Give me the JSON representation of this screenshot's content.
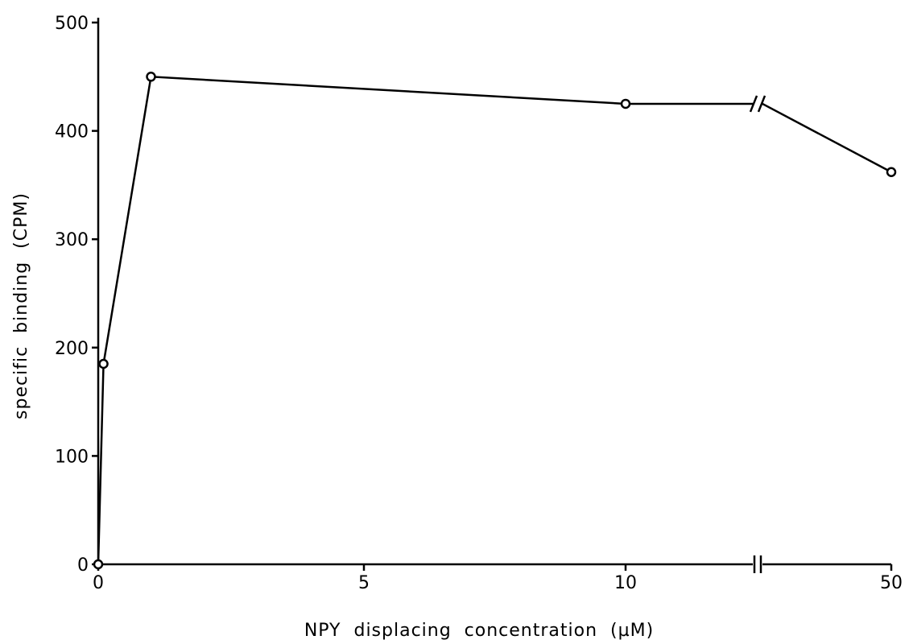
{
  "chart_data": {
    "type": "line",
    "title": "",
    "xlabel": "NPY  displacing  concentration  (µM)",
    "ylabel": "specific  binding  (CPM)",
    "x_ticks": [
      "0",
      "5",
      "10",
      "50"
    ],
    "y_ticks": [
      "0",
      "100",
      "200",
      "300",
      "400",
      "500"
    ],
    "xlim": [
      0,
      50
    ],
    "ylim": [
      0,
      500
    ],
    "x_axis_break": "between 10 and 50",
    "grid": false,
    "series": [
      {
        "x": [
          0,
          0.1,
          1,
          10,
          50
        ],
        "y": [
          0,
          185,
          450,
          425,
          362
        ],
        "marker": "open-circle"
      }
    ]
  }
}
